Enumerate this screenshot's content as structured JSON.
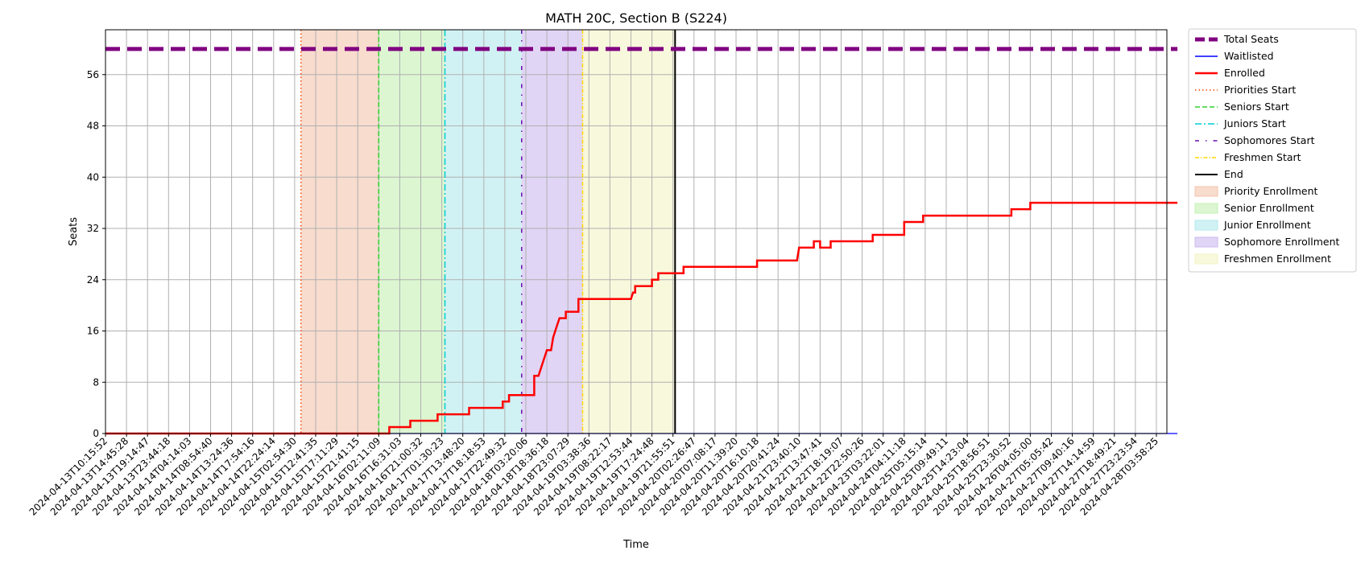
{
  "chart_data": {
    "type": "line",
    "title": "MATH 20C, Section B (S224)",
    "xlabel": "Time",
    "ylabel": "Seats",
    "ylim": [
      0,
      63
    ],
    "yticks": [
      0,
      8,
      16,
      24,
      32,
      40,
      48,
      56
    ],
    "grid": true,
    "legend_position": "outside-right-top",
    "x_tick_labels": [
      "2024-04-13T10:15:52",
      "2024-04-13T14:45:28",
      "2024-04-13T19:14:47",
      "2024-04-13T23:44:18",
      "2024-04-14T04:14:03",
      "2024-04-14T08:54:40",
      "2024-04-14T13:24:36",
      "2024-04-14T17:54:16",
      "2024-04-14T22:24:14",
      "2024-04-15T02:54:30",
      "2024-04-15T12:41:35",
      "2024-04-15T17:11:29",
      "2024-04-15T21:41:15",
      "2024-04-16T02:11:09",
      "2024-04-16T16:31:03",
      "2024-04-16T21:00:32",
      "2024-04-17T01:30:23",
      "2024-04-17T13:48:20",
      "2024-04-17T18:18:53",
      "2024-04-17T22:49:32",
      "2024-04-18T03:20:06",
      "2024-04-18T18:36:18",
      "2024-04-18T23:07:29",
      "2024-04-19T03:38:36",
      "2024-04-19T08:22:17",
      "2024-04-19T12:53:44",
      "2024-04-19T17:24:48",
      "2024-04-19T21:55:51",
      "2024-04-20T02:26:47",
      "2024-04-20T07:08:17",
      "2024-04-20T11:39:20",
      "2024-04-20T16:10:18",
      "2024-04-20T20:41:24",
      "2024-04-21T23:40:10",
      "2024-04-22T13:47:41",
      "2024-04-22T18:19:07",
      "2024-04-22T22:50:26",
      "2024-04-23T03:22:01",
      "2024-04-24T04:11:18",
      "2024-04-25T05:15:14",
      "2024-04-25T09:49:11",
      "2024-04-25T14:23:04",
      "2024-04-25T18:56:51",
      "2024-04-25T23:30:52",
      "2024-04-26T04:05:00",
      "2024-04-27T05:05:42",
      "2024-04-27T09:40:16",
      "2024-04-27T14:14:59",
      "2024-04-27T18:49:21",
      "2024-04-27T23:23:54",
      "2024-04-28T03:58:25"
    ],
    "series": [
      {
        "name": "Total Seats",
        "color": "#800080",
        "style": "dashed-thick",
        "points": [
          [
            0,
            60
          ],
          [
            51,
            60
          ]
        ]
      },
      {
        "name": "Waitlisted",
        "color": "#0000ff",
        "style": "solid",
        "points": [
          [
            0,
            0
          ],
          [
            51,
            0
          ]
        ]
      },
      {
        "name": "Enrolled",
        "color": "#ff0000",
        "style": "step-solid",
        "points": [
          [
            0,
            0
          ],
          [
            13.5,
            0
          ],
          [
            13.5,
            1
          ],
          [
            14.5,
            1
          ],
          [
            14.5,
            2
          ],
          [
            15.8,
            2
          ],
          [
            15.8,
            3
          ],
          [
            17.3,
            3
          ],
          [
            17.3,
            4
          ],
          [
            18.9,
            4
          ],
          [
            18.9,
            5
          ],
          [
            19.2,
            5
          ],
          [
            19.2,
            6
          ],
          [
            20.4,
            6
          ],
          [
            20.4,
            9
          ],
          [
            20.6,
            9
          ],
          [
            20.7,
            10
          ],
          [
            20.8,
            11
          ],
          [
            20.9,
            12
          ],
          [
            21.0,
            13
          ],
          [
            21.2,
            13
          ],
          [
            21.3,
            15
          ],
          [
            21.4,
            16
          ],
          [
            21.5,
            17
          ],
          [
            21.6,
            18
          ],
          [
            21.9,
            18
          ],
          [
            21.9,
            19
          ],
          [
            22.5,
            19
          ],
          [
            22.5,
            21
          ],
          [
            25.0,
            21
          ],
          [
            25.1,
            22
          ],
          [
            25.2,
            22
          ],
          [
            25.2,
            23
          ],
          [
            26.0,
            23
          ],
          [
            26.0,
            24
          ],
          [
            26.3,
            24
          ],
          [
            26.3,
            25
          ],
          [
            27.5,
            25
          ],
          [
            27.5,
            26
          ],
          [
            31.0,
            26
          ],
          [
            31.0,
            27
          ],
          [
            32.9,
            27
          ],
          [
            33.0,
            29
          ],
          [
            33.7,
            29
          ],
          [
            33.7,
            30
          ],
          [
            34.0,
            30
          ],
          [
            34.0,
            29
          ],
          [
            34.5,
            29
          ],
          [
            34.5,
            30
          ],
          [
            36.5,
            30
          ],
          [
            36.5,
            31
          ],
          [
            38.0,
            31
          ],
          [
            38.0,
            33
          ],
          [
            38.9,
            33
          ],
          [
            38.9,
            34
          ],
          [
            43.1,
            34
          ],
          [
            43.1,
            35
          ],
          [
            44.0,
            35
          ],
          [
            44.0,
            36
          ],
          [
            51.0,
            36
          ]
        ]
      }
    ],
    "phase_lines": [
      {
        "name": "Priorities Start",
        "color": "#ff4500",
        "style": "dotted",
        "x": 9.3
      },
      {
        "name": "Seniors Start",
        "color": "#32cd32",
        "style": "dashed",
        "x": 13.0
      },
      {
        "name": "Juniors Start",
        "color": "#00ced1",
        "style": "dashdot",
        "x": 16.15
      },
      {
        "name": "Sophomores Start",
        "color": "#6a0dad",
        "style": "loosely-dashdot",
        "x": 19.8
      },
      {
        "name": "Freshmen Start",
        "color": "#ffd700",
        "style": "dashdot-fine",
        "x": 22.7
      },
      {
        "name": "End",
        "color": "#000000",
        "style": "solid",
        "x": 27.1
      }
    ],
    "shaded_regions": [
      {
        "name": "Priority Enrollment",
        "color": "#f4c4ae",
        "start": 9.3,
        "end": 13.0
      },
      {
        "name": "Senior Enrollment",
        "color": "#c4f0b2",
        "start": 13.0,
        "end": 16.15
      },
      {
        "name": "Junior Enrollment",
        "color": "#b3e9ec",
        "start": 16.15,
        "end": 19.8
      },
      {
        "name": "Sophomore Enrollment",
        "color": "#cdb9ef",
        "start": 19.8,
        "end": 22.7
      },
      {
        "name": "Freshmen Enrollment",
        "color": "#f3f3c4",
        "start": 22.7,
        "end": 27.1
      }
    ]
  }
}
